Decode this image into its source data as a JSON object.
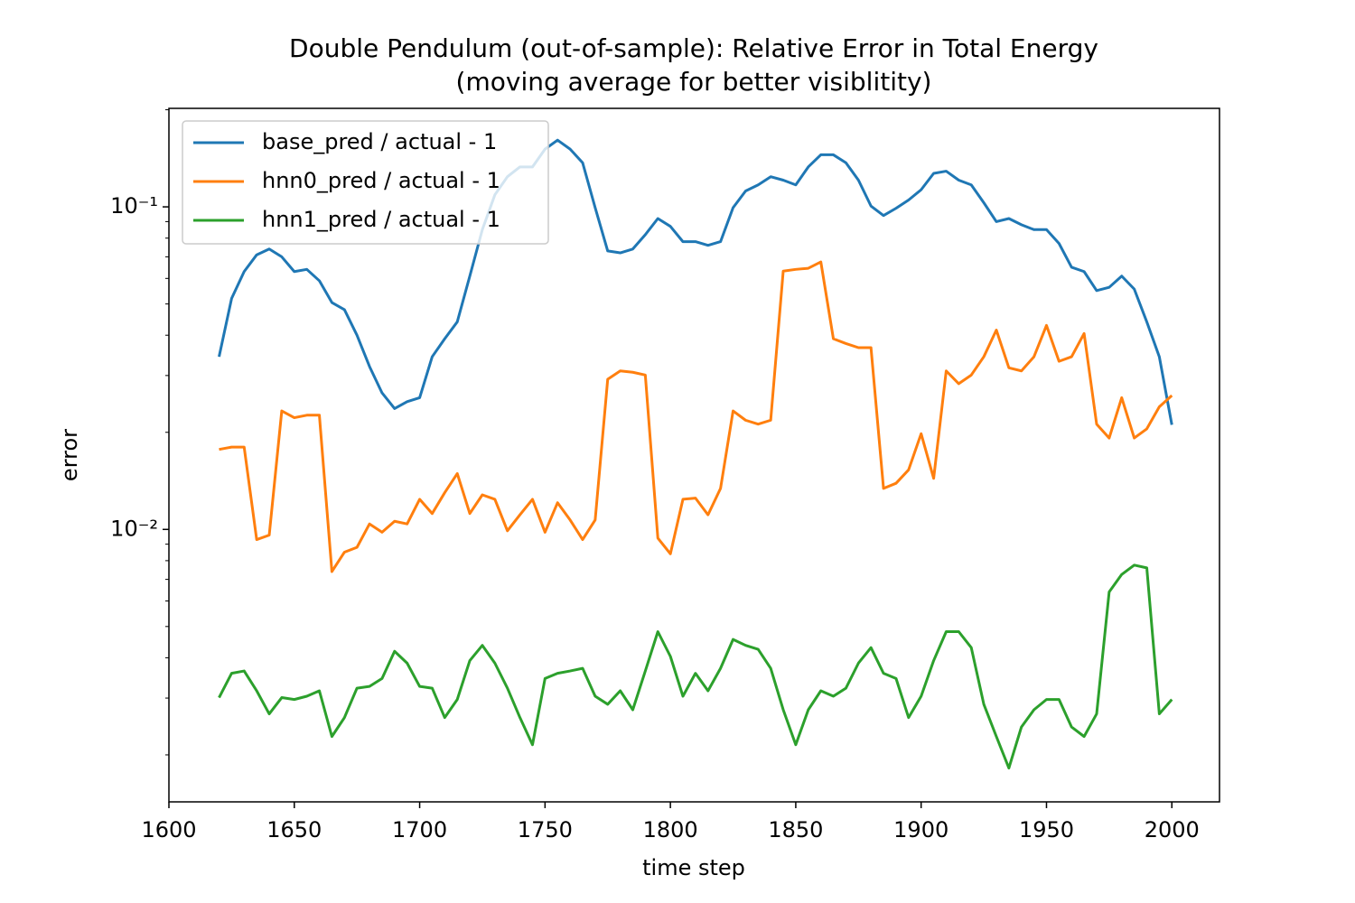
{
  "chart_data": {
    "type": "line",
    "title": "Double Pendulum (out-of-sample): Relative Error in Total Energy",
    "subtitle": "(moving average for better visiblitity)",
    "x_label": "time step",
    "y_label": "error",
    "log_y": true,
    "legend": "upper left",
    "xlim": [
      1600,
      2019
    ],
    "xticks": [
      1600,
      1650,
      1700,
      1750,
      1800,
      1850,
      1900,
      1950,
      2000
    ],
    "ylim": [
      0.00143,
      0.202
    ],
    "yticks": [
      {
        "value": 0.01,
        "label": "10⁻²"
      },
      {
        "value": 0.1,
        "label": "10⁻¹"
      }
    ],
    "yminorticks": [
      0.002,
      0.003,
      0.004,
      0.005,
      0.006,
      0.007,
      0.008,
      0.009,
      0.02,
      0.03,
      0.04,
      0.05,
      0.06,
      0.07,
      0.08,
      0.09,
      0.2
    ],
    "x": [
      1620,
      1625,
      1630,
      1635,
      1640,
      1645,
      1650,
      1655,
      1660,
      1665,
      1670,
      1675,
      1680,
      1685,
      1690,
      1695,
      1700,
      1705,
      1710,
      1715,
      1720,
      1725,
      1730,
      1735,
      1740,
      1745,
      1750,
      1755,
      1760,
      1765,
      1770,
      1775,
      1780,
      1785,
      1790,
      1795,
      1800,
      1805,
      1810,
      1815,
      1820,
      1825,
      1830,
      1835,
      1840,
      1845,
      1850,
      1855,
      1860,
      1865,
      1870,
      1875,
      1880,
      1885,
      1890,
      1895,
      1900,
      1905,
      1910,
      1915,
      1920,
      1925,
      1930,
      1935,
      1940,
      1945,
      1950,
      1955,
      1960,
      1965,
      1970,
      1975,
      1980,
      1985,
      1990,
      1995,
      2000
    ],
    "series": [
      {
        "name": "base_pred / actual - 1",
        "color": "#1f77b4",
        "values": [
          0.0343,
          0.052,
          0.063,
          0.071,
          0.074,
          0.07,
          0.063,
          0.064,
          0.059,
          0.0505,
          0.048,
          0.04,
          0.032,
          0.0265,
          0.0237,
          0.0249,
          0.0256,
          0.0343,
          0.039,
          0.044,
          0.061,
          0.085,
          0.109,
          0.124,
          0.133,
          0.133,
          0.151,
          0.161,
          0.151,
          0.137,
          0.0994,
          0.073,
          0.072,
          0.074,
          0.082,
          0.092,
          0.087,
          0.078,
          0.078,
          0.076,
          0.078,
          0.0994,
          0.112,
          0.117,
          0.124,
          0.121,
          0.117,
          0.133,
          0.145,
          0.145,
          0.137,
          0.121,
          0.1006,
          0.094,
          0.099,
          0.105,
          0.113,
          0.127,
          0.129,
          0.121,
          0.117,
          0.103,
          0.09,
          0.092,
          0.088,
          0.085,
          0.085,
          0.077,
          0.065,
          0.063,
          0.055,
          0.0563,
          0.061,
          0.0556,
          0.044,
          0.0343,
          0.0211
        ]
      },
      {
        "name": "hnn0_pred / actual - 1",
        "color": "#ff7f0e",
        "values": [
          0.0177,
          0.018,
          0.018,
          0.0093,
          0.0096,
          0.0233,
          0.0222,
          0.0226,
          0.0226,
          0.0074,
          0.0085,
          0.0088,
          0.0104,
          0.0098,
          0.0106,
          0.0104,
          0.0124,
          0.0112,
          0.013,
          0.0149,
          0.0112,
          0.0128,
          0.0124,
          0.0099,
          0.0111,
          0.0124,
          0.0098,
          0.0121,
          0.0107,
          0.0093,
          0.0107,
          0.0292,
          0.031,
          0.0307,
          0.0301,
          0.0094,
          0.0084,
          0.0124,
          0.0125,
          0.0111,
          0.0134,
          0.0233,
          0.0218,
          0.0212,
          0.0218,
          0.0632,
          0.064,
          0.0645,
          0.0675,
          0.039,
          0.0377,
          0.0366,
          0.0366,
          0.0134,
          0.0139,
          0.0153,
          0.0198,
          0.0144,
          0.031,
          0.0283,
          0.0301,
          0.0343,
          0.0415,
          0.0317,
          0.031,
          0.0343,
          0.0429,
          0.0332,
          0.0343,
          0.0405,
          0.0212,
          0.0192,
          0.0256,
          0.0192,
          0.0205,
          0.024,
          0.026
        ]
      },
      {
        "name": "hnn1_pred / actual - 1",
        "color": "#2ca02c",
        "values": [
          0.00301,
          0.00358,
          0.00364,
          0.00316,
          0.00268,
          0.00301,
          0.00297,
          0.00304,
          0.00316,
          0.00228,
          0.00261,
          0.00322,
          0.00326,
          0.00345,
          0.00419,
          0.00385,
          0.00326,
          0.00322,
          0.00261,
          0.00297,
          0.00392,
          0.00437,
          0.00385,
          0.00322,
          0.00261,
          0.00215,
          0.00345,
          0.00358,
          0.00364,
          0.00371,
          0.00304,
          0.00287,
          0.00316,
          0.00276,
          0.00364,
          0.00482,
          0.00404,
          0.00304,
          0.00358,
          0.00316,
          0.00371,
          0.00456,
          0.00437,
          0.00425,
          0.00371,
          0.00276,
          0.00215,
          0.00276,
          0.00316,
          0.00304,
          0.00322,
          0.00385,
          0.0043,
          0.00358,
          0.00345,
          0.00261,
          0.00304,
          0.00392,
          0.00482,
          0.00482,
          0.0043,
          0.00287,
          0.00228,
          0.00182,
          0.00244,
          0.00276,
          0.00297,
          0.00297,
          0.00244,
          0.00228,
          0.00268,
          0.0064,
          0.00725,
          0.00775,
          0.0076,
          0.00268,
          0.00297
        ]
      }
    ]
  }
}
